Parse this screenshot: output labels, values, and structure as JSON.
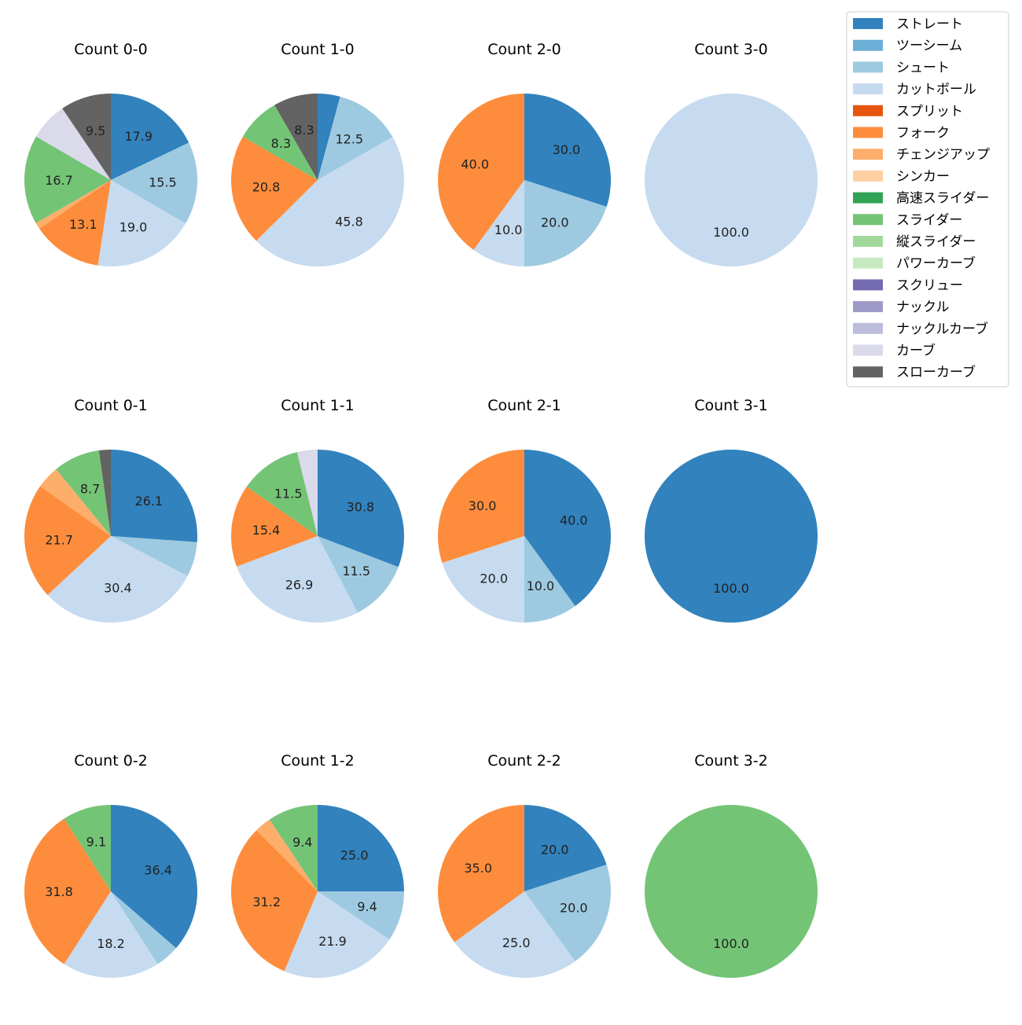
{
  "chart_data": {
    "type": "pie",
    "legend": {
      "position": "top-right",
      "entries": [
        {
          "name": "ストレート",
          "color": "#3182bd"
        },
        {
          "name": "ツーシーム",
          "color": "#6baed6"
        },
        {
          "name": "シュート",
          "color": "#9ecae1"
        },
        {
          "name": "カットボール",
          "color": "#c6dbef"
        },
        {
          "name": "スプリット",
          "color": "#e6550d"
        },
        {
          "name": "フォーク",
          "color": "#fd8d3c"
        },
        {
          "name": "チェンジアップ",
          "color": "#fdae6b"
        },
        {
          "name": "シンカー",
          "color": "#fdd0a2"
        },
        {
          "name": "高速スライダー",
          "color": "#31a354"
        },
        {
          "name": "スライダー",
          "color": "#74c476"
        },
        {
          "name": "縦スライダー",
          "color": "#a1d99b"
        },
        {
          "name": "パワーカーブ",
          "color": "#c7e9c0"
        },
        {
          "name": "スクリュー",
          "color": "#756bb1"
        },
        {
          "name": "ナックル",
          "color": "#9e9ac8"
        },
        {
          "name": "ナックルカーブ",
          "color": "#bcbddc"
        },
        {
          "name": "カーブ",
          "color": "#dadaeb"
        },
        {
          "name": "スローカーブ",
          "color": "#636363"
        }
      ]
    },
    "charts": [
      {
        "title": "Count 0-0",
        "slices": [
          {
            "pitch": "ストレート",
            "value": 17.9,
            "label": "17.9"
          },
          {
            "pitch": "シュート",
            "value": 15.5,
            "label": "15.5"
          },
          {
            "pitch": "カットボール",
            "value": 19.0,
            "label": "19.0"
          },
          {
            "pitch": "フォーク",
            "value": 13.1,
            "label": "13.1"
          },
          {
            "pitch": "チェンジアップ",
            "value": 1.2,
            "label": ""
          },
          {
            "pitch": "スライダー",
            "value": 16.7,
            "label": "16.7"
          },
          {
            "pitch": "カーブ",
            "value": 7.1,
            "label": ""
          },
          {
            "pitch": "スローカーブ",
            "value": 9.5,
            "label": "9.5"
          }
        ]
      },
      {
        "title": "Count 1-0",
        "slices": [
          {
            "pitch": "ストレート",
            "value": 4.2,
            "label": ""
          },
          {
            "pitch": "シュート",
            "value": 12.5,
            "label": "12.5"
          },
          {
            "pitch": "カットボール",
            "value": 45.8,
            "label": "45.8"
          },
          {
            "pitch": "フォーク",
            "value": 20.8,
            "label": "20.8"
          },
          {
            "pitch": "スライダー",
            "value": 8.3,
            "label": "8.3"
          },
          {
            "pitch": "スローカーブ",
            "value": 8.3,
            "label": "8.3"
          }
        ]
      },
      {
        "title": "Count 2-0",
        "slices": [
          {
            "pitch": "ストレート",
            "value": 30.0,
            "label": "30.0"
          },
          {
            "pitch": "シュート",
            "value": 20.0,
            "label": "20.0"
          },
          {
            "pitch": "カットボール",
            "value": 10.0,
            "label": "10.0"
          },
          {
            "pitch": "フォーク",
            "value": 40.0,
            "label": "40.0"
          }
        ]
      },
      {
        "title": "Count 3-0",
        "slices": [
          {
            "pitch": "カットボール",
            "value": 100.0,
            "label": "100.0"
          }
        ]
      },
      {
        "title": "Count 0-1",
        "slices": [
          {
            "pitch": "ストレート",
            "value": 26.1,
            "label": "26.1"
          },
          {
            "pitch": "シュート",
            "value": 6.5,
            "label": ""
          },
          {
            "pitch": "カットボール",
            "value": 30.4,
            "label": "30.4"
          },
          {
            "pitch": "フォーク",
            "value": 21.7,
            "label": "21.7"
          },
          {
            "pitch": "チェンジアップ",
            "value": 4.3,
            "label": ""
          },
          {
            "pitch": "スライダー",
            "value": 8.7,
            "label": "8.7"
          },
          {
            "pitch": "スローカーブ",
            "value": 2.2,
            "label": ""
          }
        ]
      },
      {
        "title": "Count 1-1",
        "slices": [
          {
            "pitch": "ストレート",
            "value": 30.8,
            "label": "30.8"
          },
          {
            "pitch": "シュート",
            "value": 11.5,
            "label": "11.5"
          },
          {
            "pitch": "カットボール",
            "value": 26.9,
            "label": "26.9"
          },
          {
            "pitch": "フォーク",
            "value": 15.4,
            "label": "15.4"
          },
          {
            "pitch": "スライダー",
            "value": 11.5,
            "label": "11.5"
          },
          {
            "pitch": "カーブ",
            "value": 3.8,
            "label": ""
          }
        ]
      },
      {
        "title": "Count 2-1",
        "slices": [
          {
            "pitch": "ストレート",
            "value": 40.0,
            "label": "40.0"
          },
          {
            "pitch": "シュート",
            "value": 10.0,
            "label": "10.0"
          },
          {
            "pitch": "カットボール",
            "value": 20.0,
            "label": "20.0"
          },
          {
            "pitch": "フォーク",
            "value": 30.0,
            "label": "30.0"
          }
        ]
      },
      {
        "title": "Count 3-1",
        "slices": [
          {
            "pitch": "ストレート",
            "value": 100.0,
            "label": "100.0"
          }
        ]
      },
      {
        "title": "Count 0-2",
        "slices": [
          {
            "pitch": "ストレート",
            "value": 36.4,
            "label": "36.4"
          },
          {
            "pitch": "シュート",
            "value": 4.5,
            "label": ""
          },
          {
            "pitch": "カットボール",
            "value": 18.2,
            "label": "18.2"
          },
          {
            "pitch": "フォーク",
            "value": 31.8,
            "label": "31.8"
          },
          {
            "pitch": "スライダー",
            "value": 9.1,
            "label": "9.1"
          }
        ]
      },
      {
        "title": "Count 1-2",
        "slices": [
          {
            "pitch": "ストレート",
            "value": 25.0,
            "label": "25.0"
          },
          {
            "pitch": "シュート",
            "value": 9.4,
            "label": "9.4"
          },
          {
            "pitch": "カットボール",
            "value": 21.9,
            "label": "21.9"
          },
          {
            "pitch": "フォーク",
            "value": 31.2,
            "label": "31.2"
          },
          {
            "pitch": "チェンジアップ",
            "value": 3.1,
            "label": ""
          },
          {
            "pitch": "スライダー",
            "value": 9.4,
            "label": "9.4"
          }
        ]
      },
      {
        "title": "Count 2-2",
        "slices": [
          {
            "pitch": "ストレート",
            "value": 20.0,
            "label": "20.0"
          },
          {
            "pitch": "シュート",
            "value": 20.0,
            "label": "20.0"
          },
          {
            "pitch": "カットボール",
            "value": 25.0,
            "label": "25.0"
          },
          {
            "pitch": "フォーク",
            "value": 35.0,
            "label": "35.0"
          }
        ]
      },
      {
        "title": "Count 3-2",
        "slices": [
          {
            "pitch": "スライダー",
            "value": 100.0,
            "label": "100.0"
          }
        ]
      }
    ]
  }
}
